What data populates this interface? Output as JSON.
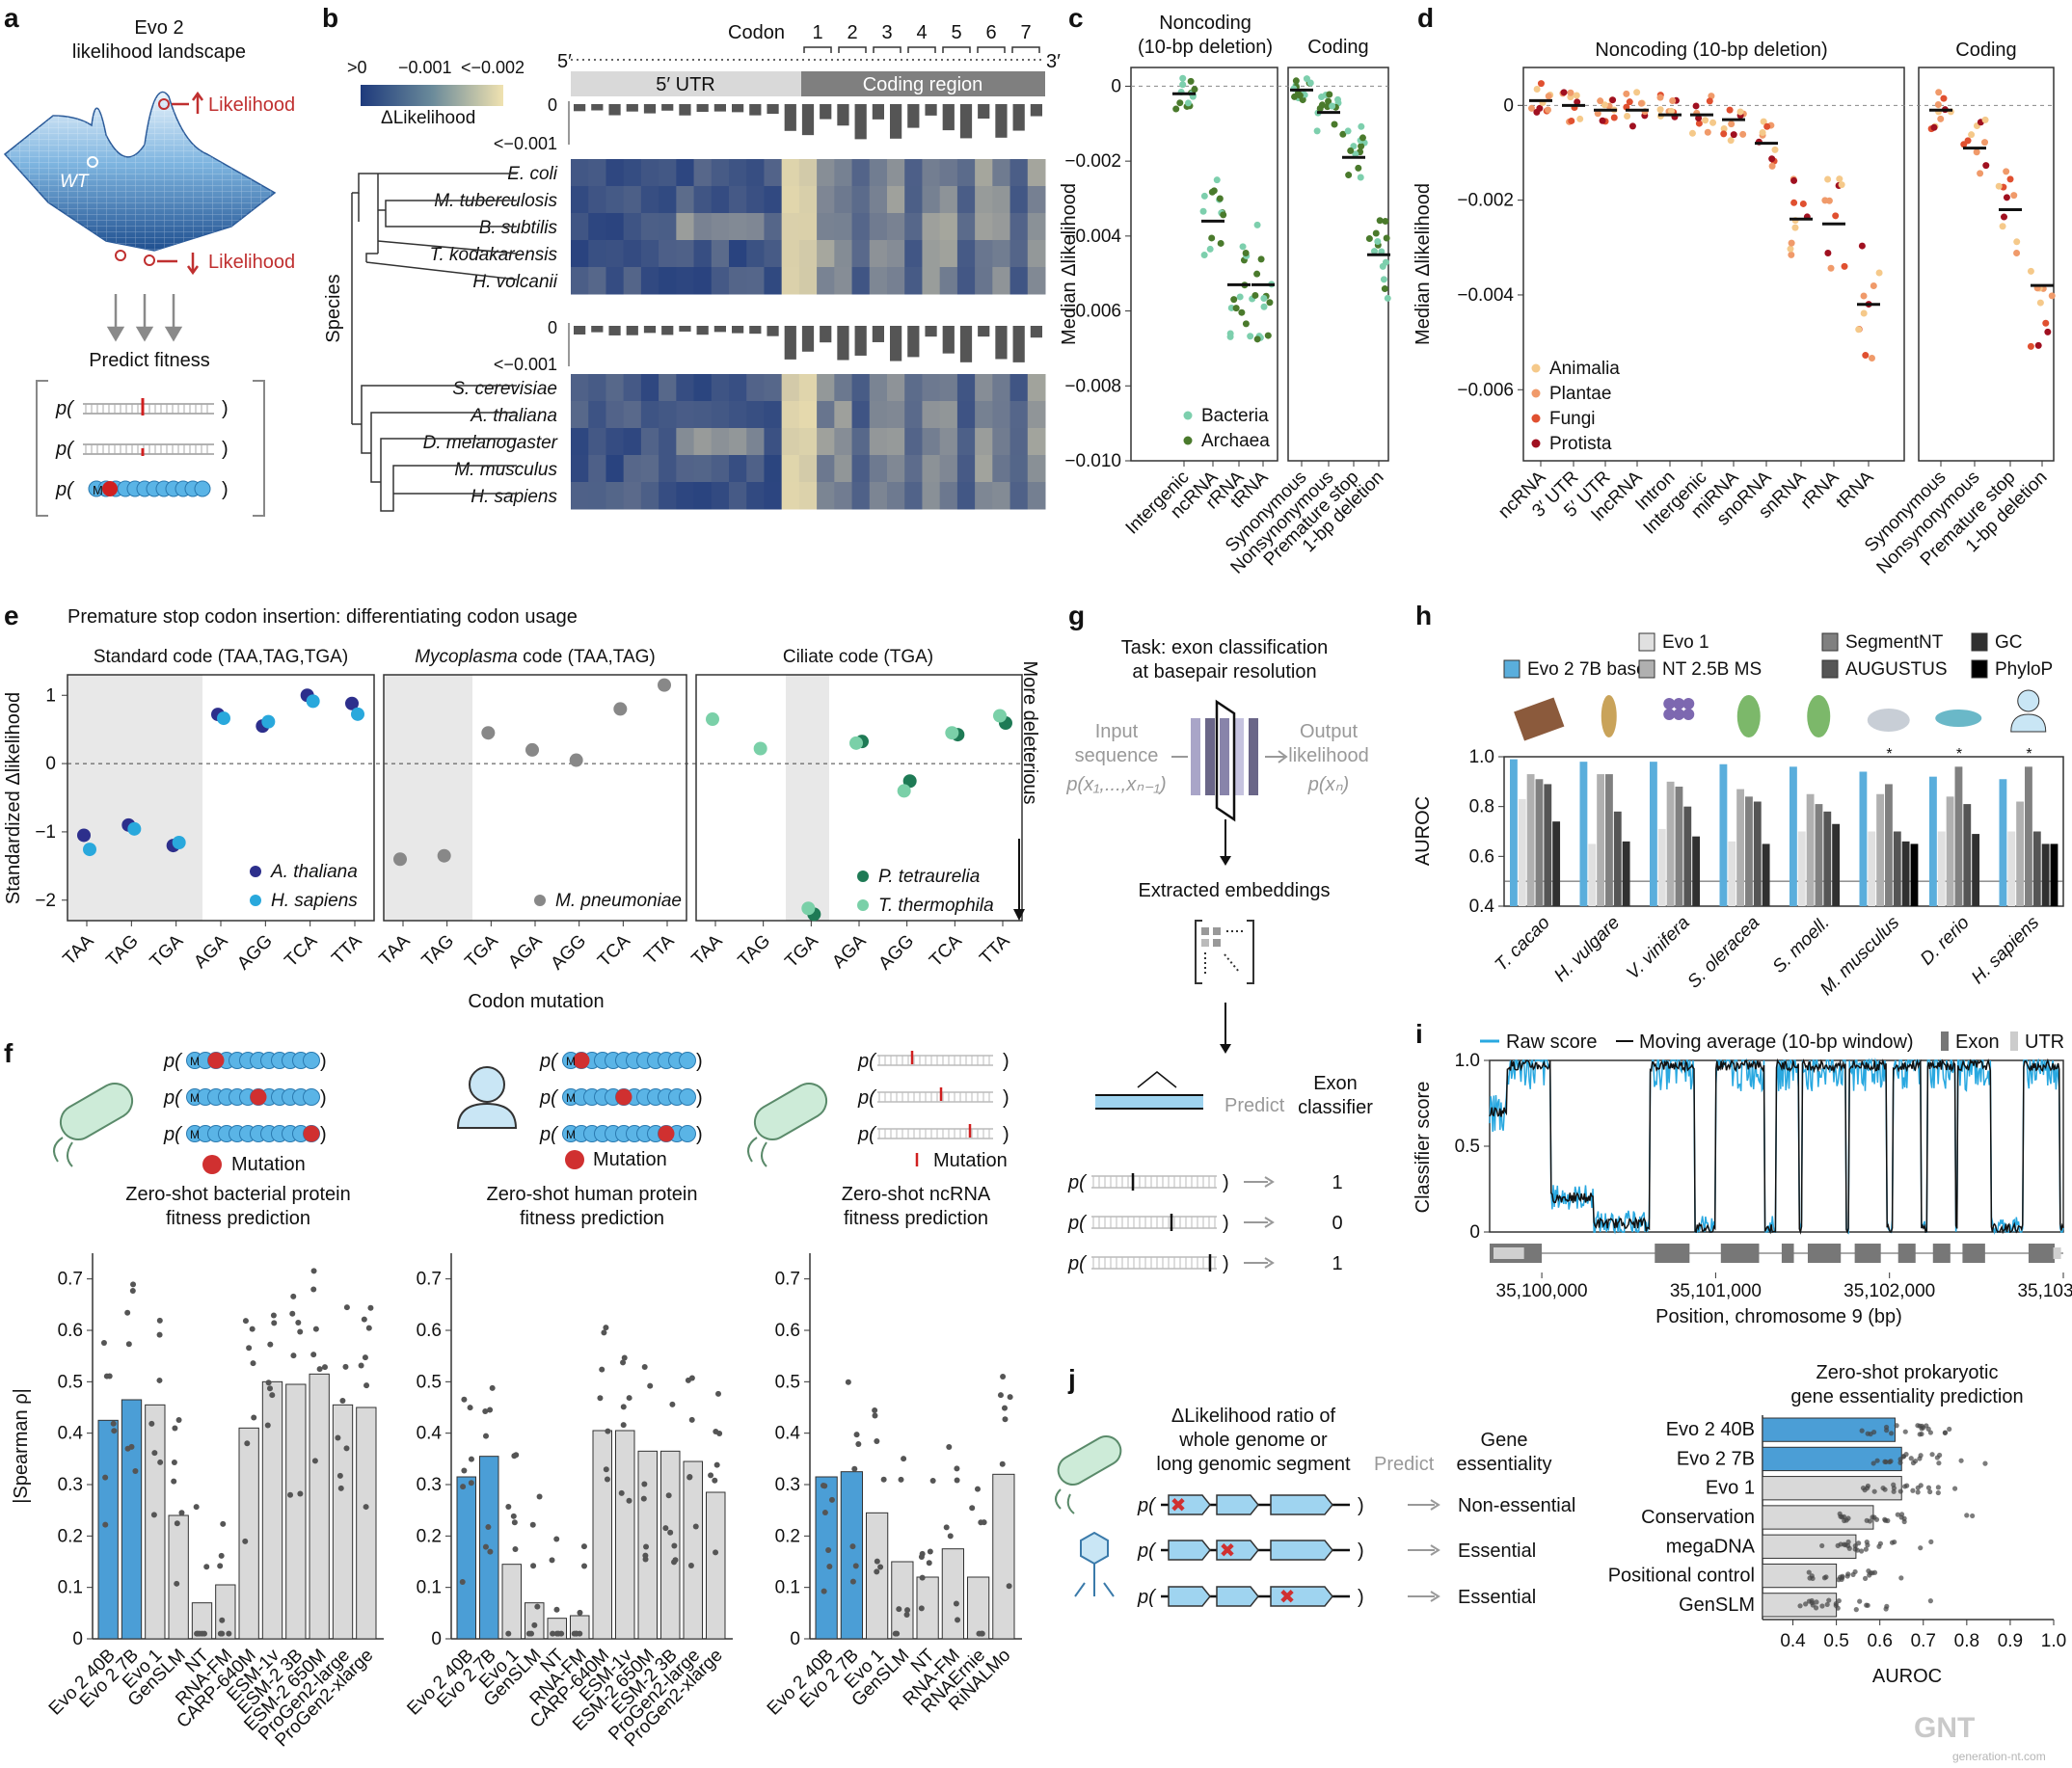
{
  "panels": [
    "a",
    "b",
    "c",
    "d",
    "e",
    "f",
    "g",
    "h",
    "i",
    "j"
  ],
  "watermark": {
    "brand": "GNT",
    "sub": "generation-nt.com"
  },
  "panel_a": {
    "title_line1": "Evo 2",
    "title_line2": "likelihood landscape",
    "wt_label": "WT",
    "up_label": "Likelihood",
    "down_label": "Likelihood",
    "predict_label": "Predict fitness",
    "p_prefix": "p(",
    "p_suffix": ")",
    "m_label": "M"
  },
  "panel_b": {
    "codon_label": "Codon",
    "codon_numbers": [
      "1",
      "2",
      "3",
      "4",
      "5",
      "6",
      "7"
    ],
    "five_prime": "5′",
    "three_prime": "3′",
    "utr_label": "5′ UTR",
    "coding_label": "Coding region",
    "colorbar_ticks": [
      ">0",
      "−0.001",
      "<−0.002"
    ],
    "colorbar_label": "ΔLikelihood",
    "bar_top": "0",
    "bar_bottom": "<−0.001",
    "species_axis": "Species",
    "species_top": [
      "E. coli",
      "M. tuberculosis",
      "B. subtilis",
      "T. kodakarensis",
      "H. volcanii"
    ],
    "species_bottom": [
      "S. cerevisiae",
      "A. thaliana",
      "D. melanogaster",
      "M. musculus",
      "H. sapiens"
    ],
    "colors": {
      "low": "#1e3a7c",
      "high": "#f0e2b0"
    }
  },
  "chart_data": [
    {
      "id": "c",
      "type": "scatter",
      "group_titles": [
        "Noncoding\n(10-bp deletion)",
        "Coding"
      ],
      "ylabel": "Median Δlikelihood",
      "ylim": [
        -0.01,
        0.0005
      ],
      "yticks": [
        "0",
        "−0.002",
        "−0.004",
        "−0.006",
        "−0.008",
        "−0.010"
      ],
      "categories": [
        "Intergenic",
        "ncRNA",
        "rRNA",
        "tRNA",
        "Synonymous",
        "Nonsynonymous",
        "Premature stop",
        "1-bp deletion"
      ],
      "medians": [
        -0.0002,
        -0.0036,
        -0.0053,
        -0.0053,
        -0.0001,
        -0.0007,
        -0.0019,
        -0.0045
      ],
      "legend": [
        "Bacteria",
        "Archaea"
      ],
      "colors": {
        "Bacteria": "#7dcfad",
        "Archaea": "#4a7a2c"
      }
    },
    {
      "id": "d",
      "type": "scatter",
      "group_titles": [
        "Noncoding (10-bp deletion)",
        "Coding"
      ],
      "ylabel": "Median Δlikelihood",
      "ylim": [
        -0.0075,
        0.0008
      ],
      "yticks": [
        "0",
        "−0.002",
        "−0.004",
        "−0.006"
      ],
      "categories": [
        "ncRNA",
        "3′ UTR",
        "5′ UTR",
        "lncRNA",
        "Intron",
        "Intergenic",
        "miRNA",
        "snoRNA",
        "snRNA",
        "rRNA",
        "tRNA",
        "Synonymous",
        "Nonsynonymous",
        "Premature stop",
        "1-bp deletion"
      ],
      "medians": [
        0.0001,
        0.0,
        -0.0001,
        -0.0001,
        -0.0002,
        -0.0002,
        -0.0003,
        -0.0008,
        -0.0024,
        -0.0025,
        -0.0042,
        -0.0001,
        -0.0009,
        -0.0022,
        -0.0038
      ],
      "legend": [
        "Animalia",
        "Plantae",
        "Fungi",
        "Protista"
      ],
      "colors": {
        "Animalia": "#f5c98a",
        "Plantae": "#f09a6a",
        "Fungi": "#e05030",
        "Protista": "#a01020"
      }
    },
    {
      "id": "e",
      "type": "scatter",
      "title": "Premature stop codon insertion: differentiating codon usage",
      "subtitles": [
        "Standard code (TAA,TAG,TGA)",
        "Mycoplasma",
        " code (TAA,TAG)",
        "Ciliate code (TGA)"
      ],
      "ylabel": "Standardized Δlikelihood",
      "xlabel": "Codon mutation",
      "side_label": "More deleterious",
      "ylim": [
        -2.3,
        1.3
      ],
      "yticks": [
        "1",
        "0",
        "−1",
        "−2"
      ],
      "codons": [
        "TAA",
        "TAG",
        "TGA",
        "AGA",
        "AGG",
        "TCA",
        "TTA"
      ],
      "series": [
        {
          "name": "A. thaliana",
          "panel": 0,
          "values": [
            -1.05,
            -0.9,
            -1.2,
            0.72,
            0.55,
            1.0,
            0.88
          ],
          "color": "#2d2f8c"
        },
        {
          "name": "H. sapiens",
          "panel": 0,
          "values": [
            -1.2,
            -0.9,
            -1.1,
            0.72,
            0.67,
            0.97,
            0.78
          ],
          "color": "#29a8dc"
        },
        {
          "name": "M. pneumoniae",
          "panel": 1,
          "values": [
            -1.4,
            -1.35,
            0.45,
            0.2,
            0.05,
            0.8,
            1.15
          ],
          "color": "#888888"
        },
        {
          "name": "P. tetraurelia",
          "panel": 2,
          "values": [
            null,
            null,
            -2.15,
            0.38,
            -0.2,
            0.48,
            0.65
          ],
          "color": "#1e7a55"
        },
        {
          "name": "T. thermophila",
          "panel": 2,
          "values": [
            0.65,
            0.22,
            -2.12,
            0.3,
            -0.4,
            0.45,
            0.7
          ],
          "color": "#7ad0a8"
        }
      ]
    },
    {
      "id": "f1",
      "type": "bar",
      "title": "Zero-shot bacterial protein\nfitness prediction",
      "ylabel": "|Spearman ρ|",
      "ylim": [
        0,
        0.75
      ],
      "yticks": [
        "0",
        "0.1",
        "0.2",
        "0.3",
        "0.4",
        "0.5",
        "0.6",
        "0.7"
      ],
      "categories": [
        "Evo 2 40B",
        "Evo 2 7B",
        "Evo 1",
        "GenSLM",
        "NT",
        "RNA-FM",
        "CARP-640M",
        "ESM-1v",
        "ESM-2 3B",
        "ESM-2 650M",
        "ProGen2-large",
        "ProGen2-xlarge"
      ],
      "values": [
        0.425,
        0.465,
        0.455,
        0.24,
        0.07,
        0.105,
        0.41,
        0.5,
        0.495,
        0.515,
        0.455,
        0.45
      ],
      "highlight": [
        0,
        1
      ],
      "legend": [
        "Mutation"
      ]
    },
    {
      "id": "f2",
      "type": "bar",
      "title": "Zero-shot human protein\nfitness prediction",
      "ylim": [
        0,
        0.75
      ],
      "yticks": [
        "0",
        "0.1",
        "0.2",
        "0.3",
        "0.4",
        "0.5",
        "0.6",
        "0.7"
      ],
      "categories": [
        "Evo 2 40B",
        "Evo 2 7B",
        "Evo 1",
        "GenSLM",
        "NT",
        "RNA-FM",
        "CARP-640M",
        "ESM-1v",
        "ESM-2 650M",
        "ESM-2 3B",
        "ProGen2-large",
        "ProGen2-xlarge"
      ],
      "values": [
        0.315,
        0.355,
        0.145,
        0.07,
        0.04,
        0.045,
        0.405,
        0.405,
        0.365,
        0.365,
        0.345,
        0.285
      ],
      "highlight": [
        0,
        1
      ],
      "legend": [
        "Mutation"
      ]
    },
    {
      "id": "f3",
      "type": "bar",
      "title": "Zero-shot ncRNA\nfitness prediction",
      "ylim": [
        0,
        0.75
      ],
      "yticks": [
        "0",
        "0.1",
        "0.2",
        "0.3",
        "0.4",
        "0.5",
        "0.6",
        "0.7"
      ],
      "categories": [
        "Evo 2 40B",
        "Evo 2 7B",
        "Evo 1",
        "GenSLM",
        "NT",
        "RNA-FM",
        "RNAErnie",
        "RiNALMo"
      ],
      "values": [
        0.315,
        0.325,
        0.245,
        0.15,
        0.12,
        0.175,
        0.12,
        0.32
      ],
      "highlight": [
        0,
        1
      ],
      "legend": [
        "Mutation"
      ]
    },
    {
      "id": "h",
      "type": "bar",
      "ylabel": "AUROC",
      "ylim": [
        0.4,
        1.0
      ],
      "yticks": [
        "0.4",
        "0.6",
        "0.8",
        "1.0"
      ],
      "categories": [
        "T. cacao",
        "H. vulgare",
        "V. vinifera",
        "S. oleracea",
        "S. moell.",
        "M. musculus",
        "D. rerio",
        "H. sapiens"
      ],
      "series": [
        {
          "name": "Evo 2 7B base",
          "color": "#5aaedc",
          "values": [
            0.99,
            0.98,
            0.98,
            0.97,
            0.96,
            0.94,
            0.92,
            0.91
          ]
        },
        {
          "name": "Evo 1",
          "color": "#e0e0e0",
          "values": [
            0.83,
            0.65,
            0.71,
            0.66,
            0.7,
            0.7,
            0.7,
            0.7
          ]
        },
        {
          "name": "NT 2.5B MS",
          "color": "#b0b0b0",
          "values": [
            0.93,
            0.93,
            0.9,
            0.87,
            0.85,
            0.85,
            0.84,
            0.82
          ]
        },
        {
          "name": "SegmentNT",
          "color": "#808080",
          "values": [
            0.91,
            0.93,
            0.88,
            0.84,
            0.81,
            0.89,
            0.96,
            0.96
          ]
        },
        {
          "name": "AUGUSTUS",
          "color": "#555555",
          "values": [
            0.89,
            0.78,
            0.8,
            0.82,
            0.78,
            0.7,
            0.81,
            0.7
          ]
        },
        {
          "name": "GC",
          "color": "#303030",
          "values": [
            0.74,
            0.66,
            0.68,
            0.65,
            0.73,
            0.66,
            0.69,
            0.65
          ]
        },
        {
          "name": "PhyloP",
          "color": "#000000",
          "values": [
            null,
            null,
            null,
            null,
            null,
            0.65,
            null,
            0.65
          ]
        }
      ],
      "star": [
        5,
        6,
        7
      ]
    },
    {
      "id": "i",
      "type": "line",
      "legend": [
        "Raw score",
        "Moving average (10-bp window)",
        "Exon",
        "UTR"
      ],
      "xlabel": "Position, chromosome 9 (bp)",
      "ylabel": "Classifier score",
      "xticks": [
        "35,100,000",
        "35,101,000",
        "35,102,000",
        "35,103,000"
      ],
      "yticks": [
        "0",
        "0.5",
        "1.0"
      ],
      "xlim": [
        35099700,
        35103000
      ],
      "ylim": [
        0,
        1
      ],
      "exons": [
        [
          35099700,
          35100000
        ],
        [
          35100650,
          35100850
        ],
        [
          35101030,
          35101250
        ],
        [
          35101380,
          35101450
        ],
        [
          35101530,
          35101720
        ],
        [
          35101800,
          35101950
        ],
        [
          35102050,
          35102150
        ],
        [
          35102250,
          35102350
        ],
        [
          35102420,
          35102550
        ],
        [
          35102800,
          35102950
        ]
      ],
      "utrs": [
        [
          35099700,
          35099920
        ],
        [
          35102920,
          35103000
        ]
      ]
    },
    {
      "id": "j",
      "type": "bar",
      "title": "Zero-shot prokaryotic\ngene essentiality prediction",
      "xlabel": "AUROC",
      "xlim": [
        0.33,
        1.0
      ],
      "xticks": [
        "0.4",
        "0.5",
        "0.6",
        "0.7",
        "0.8",
        "0.9",
        "1.0"
      ],
      "categories": [
        "Evo 2 40B",
        "Evo 2 7B",
        "Evo 1",
        "Conservation",
        "megaDNA",
        "Positional control",
        "GenSLM"
      ],
      "values": [
        0.635,
        0.65,
        0.65,
        0.585,
        0.545,
        0.5,
        0.5
      ],
      "highlight": [
        0,
        1
      ]
    }
  ],
  "panel_c_legend": [
    "Bacteria",
    "Archaea"
  ],
  "panel_g": {
    "task_line1": "Task: exon classification",
    "task_line2": "at basepair resolution",
    "input_line1": "Input",
    "input_line2": "sequence",
    "input_formula": "p(x₁,...,xₙ₋₁)",
    "output_line1": "Output",
    "output_line2": "likelihood",
    "output_formula": "p(xₙ)",
    "embeddings": "Extracted embeddings",
    "predict": "Predict",
    "classifier_line1": "Exon",
    "classifier_line2": "classifier",
    "outputs": [
      "1",
      "0",
      "1"
    ]
  },
  "panel_j": {
    "ratio_line1": "ΔLikelihood ratio of",
    "ratio_line2": "whole genome or",
    "ratio_line3": "long genomic segment",
    "predict": "Predict",
    "gene_line1": "Gene",
    "gene_line2": "essentiality",
    "outcomes": [
      "Non-essential",
      "Essential",
      "Essential"
    ]
  }
}
